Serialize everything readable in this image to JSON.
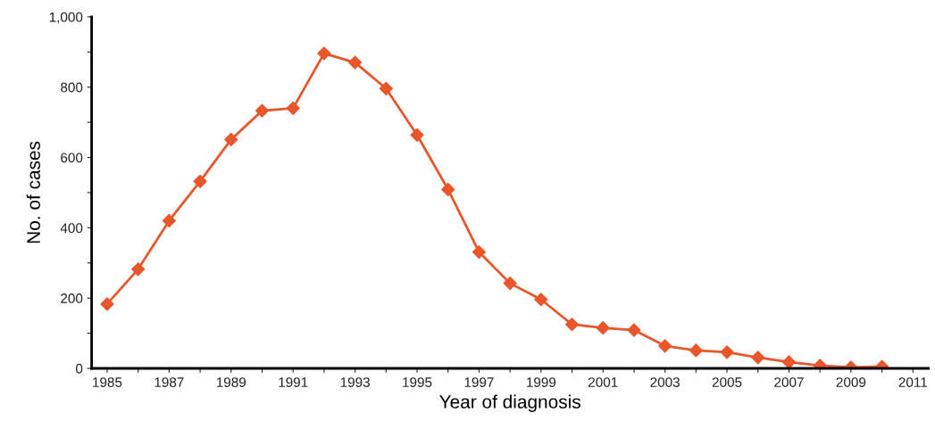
{
  "chart_data": {
    "type": "line",
    "xlabel": "Year of diagnosis",
    "ylabel": "No. of cases",
    "x": [
      1985,
      1986,
      1987,
      1988,
      1989,
      1990,
      1991,
      1992,
      1993,
      1994,
      1995,
      1996,
      1997,
      1998,
      1999,
      2000,
      2001,
      2002,
      2003,
      2004,
      2005,
      2006,
      2007,
      2008,
      2009,
      2010
    ],
    "series": [
      {
        "color": "#e8562a",
        "values": [
          183,
          282,
          420,
          532,
          651,
          733,
          740,
          896,
          870,
          796,
          664,
          509,
          331,
          242,
          196,
          125,
          115,
          109,
          64,
          51,
          46,
          31,
          18,
          8,
          3,
          5
        ]
      }
    ],
    "marker": "diamond",
    "line_style": "solid",
    "grid": false,
    "xlim": [
      1984.5,
      2011.5
    ],
    "xticks": [
      1985,
      {
        "value": 1986,
        "label": null
      },
      1987,
      {
        "value": 1988,
        "label": null
      },
      1989,
      {
        "value": 1990,
        "label": null
      },
      1991,
      {
        "value": 1992,
        "label": null
      },
      1993,
      {
        "value": 1994,
        "label": null
      },
      1995,
      {
        "value": 1996,
        "label": null
      },
      1997,
      {
        "value": 1998,
        "label": null
      },
      1999,
      {
        "value": 2000,
        "label": null
      },
      2001,
      {
        "value": 2002,
        "label": null
      },
      2003,
      {
        "value": 2004,
        "label": null
      },
      2005,
      {
        "value": 2006,
        "label": null
      },
      2007,
      {
        "value": 2008,
        "label": null
      },
      2009,
      {
        "value": 2010,
        "label": null
      },
      2011
    ],
    "ylim": [
      0,
      1000
    ],
    "yticks": [
      0,
      {
        "value": 100,
        "label": null
      },
      200,
      {
        "value": 300,
        "label": null
      },
      400,
      {
        "value": 500,
        "label": null
      },
      600,
      {
        "value": 700,
        "label": null
      },
      800,
      {
        "value": 900,
        "label": null
      },
      {
        "value": 1000,
        "label": "1,000"
      }
    ]
  }
}
